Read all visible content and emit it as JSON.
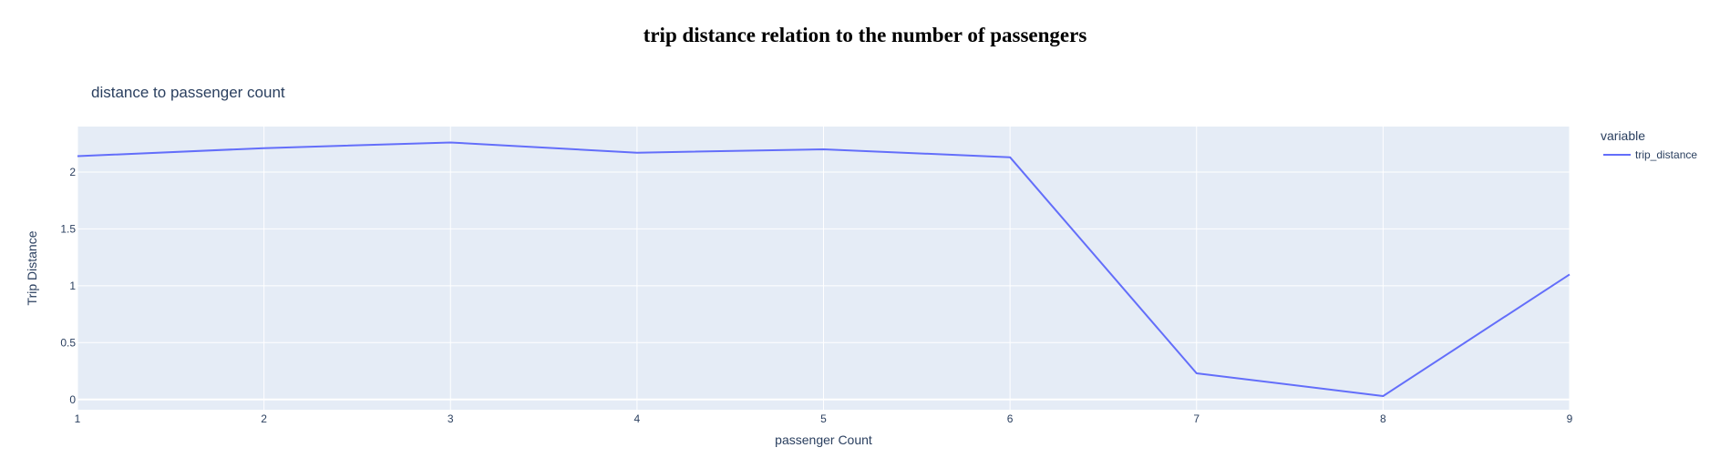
{
  "heading": "trip distance relation to the number of passengers",
  "chart_data": {
    "type": "line",
    "title": "distance to passenger count",
    "xlabel": "passenger Count",
    "ylabel": "Trip Distance",
    "x": [
      1,
      2,
      3,
      4,
      5,
      6,
      7,
      8,
      9
    ],
    "series": [
      {
        "name": "trip_distance",
        "values": [
          2.14,
          2.21,
          2.26,
          2.17,
          2.2,
          2.13,
          0.23,
          0.03,
          1.1
        ],
        "color": "#636efa"
      }
    ],
    "xlim": [
      1,
      9
    ],
    "ylim": [
      -0.09,
      2.4
    ],
    "xticks": [
      1,
      2,
      3,
      4,
      5,
      6,
      7,
      8,
      9
    ],
    "yticks": [
      0,
      0.5,
      1,
      1.5,
      2
    ],
    "ytick_labels": [
      "0",
      "0.5",
      "1",
      "1.5",
      "2"
    ],
    "legend_title": "variable",
    "legend_position": "top-right",
    "grid": true,
    "plot_background": "#e5ecf6",
    "grid_color": "#ffffff"
  }
}
